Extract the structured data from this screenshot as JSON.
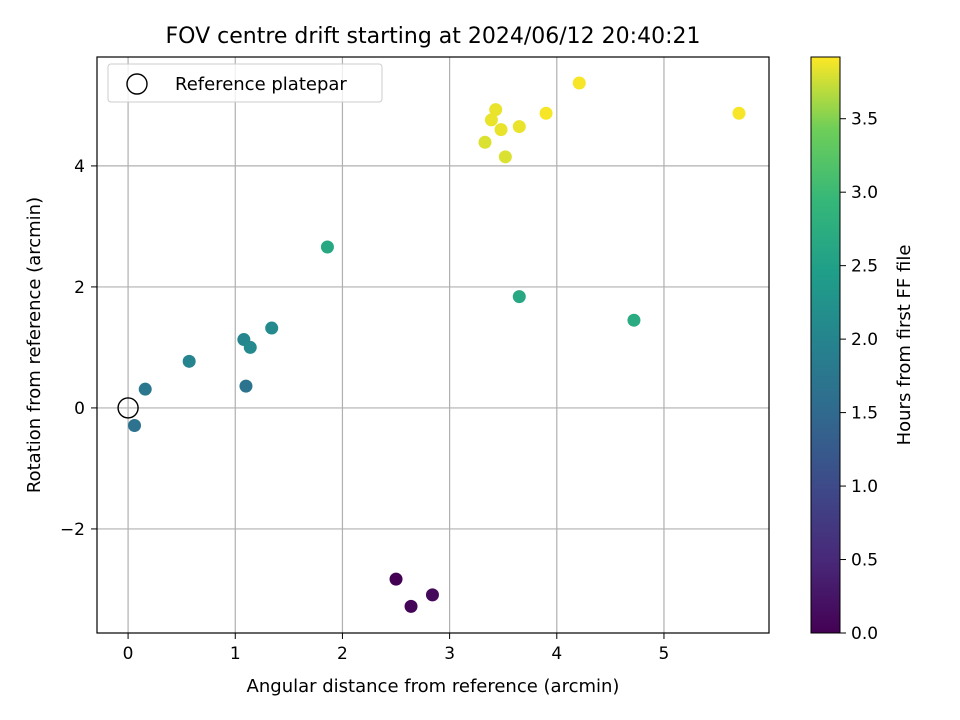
{
  "chart_data": {
    "type": "scatter",
    "title": "FOV centre drift starting at 2024/06/12 20:40:21",
    "xlabel": "Angular distance from reference (arcmin)",
    "ylabel": "Rotation from reference (arcmin)",
    "xlim": [
      -0.29,
      5.98
    ],
    "ylim": [
      -3.72,
      5.8
    ],
    "xticks": [
      0,
      1,
      2,
      3,
      4,
      5
    ],
    "yticks": [
      -2,
      0,
      2,
      4
    ],
    "ytick_labels": [
      "−2",
      "0",
      "2",
      "4"
    ],
    "grid": true,
    "legend": {
      "placement": "top-left",
      "entries": [
        {
          "label": "Reference platepar",
          "marker": "open-circle"
        }
      ],
      "reference_point": {
        "x": 0,
        "y": 0
      }
    },
    "colorbar": {
      "label": "Hours from first FF file",
      "colormap": "viridis",
      "range": [
        0,
        3.92
      ],
      "ticks": [
        0.0,
        0.5,
        1.0,
        1.5,
        2.0,
        2.5,
        3.0,
        3.5
      ],
      "tick_labels": [
        "0.0",
        "0.5",
        "1.0",
        "1.5",
        "2.0",
        "2.5",
        "3.0",
        "3.5"
      ]
    },
    "points": [
      {
        "x": 2.5,
        "y": -2.83,
        "hours": 0.0
      },
      {
        "x": 2.64,
        "y": -3.28,
        "hours": 0.05
      },
      {
        "x": 2.84,
        "y": -3.09,
        "hours": 0.1
      },
      {
        "x": 0.06,
        "y": -0.29,
        "hours": 1.65
      },
      {
        "x": 1.1,
        "y": 0.36,
        "hours": 1.7
      },
      {
        "x": 0.16,
        "y": 0.31,
        "hours": 1.75
      },
      {
        "x": 0.57,
        "y": 0.77,
        "hours": 2.0
      },
      {
        "x": 1.08,
        "y": 1.13,
        "hours": 2.05
      },
      {
        "x": 1.14,
        "y": 1.0,
        "hours": 2.1
      },
      {
        "x": 1.34,
        "y": 1.32,
        "hours": 2.1
      },
      {
        "x": 1.86,
        "y": 2.66,
        "hours": 2.65
      },
      {
        "x": 3.65,
        "y": 1.84,
        "hours": 2.65
      },
      {
        "x": 4.72,
        "y": 1.45,
        "hours": 2.7
      },
      {
        "x": 3.33,
        "y": 4.39,
        "hours": 3.8
      },
      {
        "x": 3.39,
        "y": 4.76,
        "hours": 3.85
      },
      {
        "x": 3.43,
        "y": 4.93,
        "hours": 3.85
      },
      {
        "x": 3.48,
        "y": 4.6,
        "hours": 3.85
      },
      {
        "x": 3.52,
        "y": 4.15,
        "hours": 3.8
      },
      {
        "x": 3.65,
        "y": 4.65,
        "hours": 3.85
      },
      {
        "x": 3.9,
        "y": 4.87,
        "hours": 3.9
      },
      {
        "x": 4.21,
        "y": 5.37,
        "hours": 3.9
      },
      {
        "x": 5.7,
        "y": 4.87,
        "hours": 3.9
      }
    ]
  }
}
